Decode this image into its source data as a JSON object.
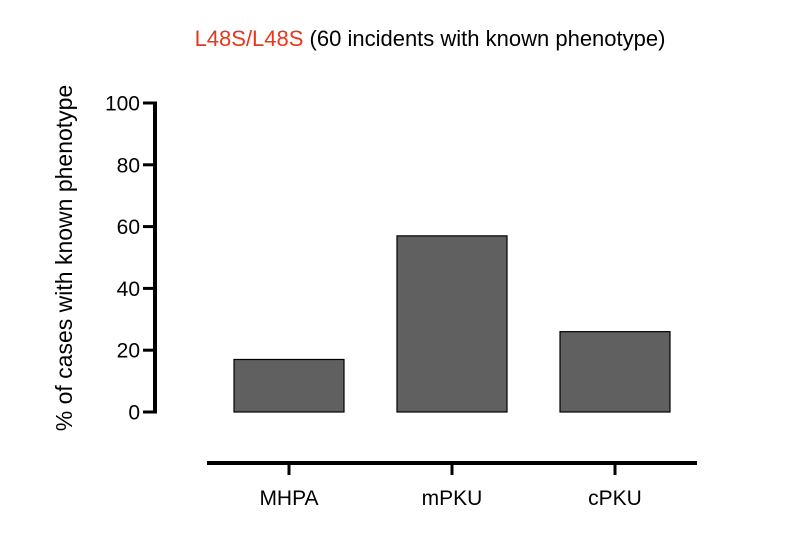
{
  "chart_data": {
    "type": "bar",
    "title_highlight": "L48S/L48S",
    "title_rest": " (60 incidents with known phenotype)",
    "xlabel": "",
    "ylabel": "% of cases with known phenotype",
    "categories": [
      "MHPA",
      "mPKU",
      "cPKU"
    ],
    "values": [
      17,
      57,
      26
    ],
    "ylim": [
      0,
      100
    ],
    "yticks": [
      "0",
      "20",
      "40",
      "60",
      "80",
      "100"
    ],
    "grid": false,
    "legend": "none"
  },
  "colors": {
    "bar_fill": "#606060",
    "bar_stroke": "#000000",
    "title_highlight": "#e8371e",
    "axis": "#000000",
    "text": "#000000"
  }
}
